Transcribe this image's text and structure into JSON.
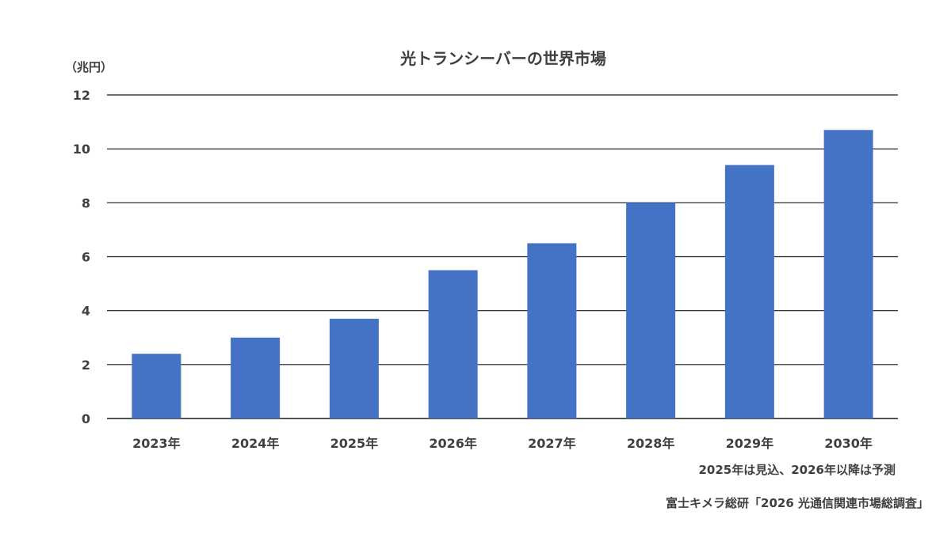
{
  "chart_data": {
    "type": "bar",
    "title": "光トランシーバーの世界市場",
    "unit": "（兆円）",
    "categories": [
      "2023年",
      "2024年",
      "2025年",
      "2026年",
      "2027年",
      "2028年",
      "2029年",
      "2030年"
    ],
    "values": [
      2.4,
      3.0,
      3.7,
      5.5,
      6.5,
      8.0,
      9.4,
      10.7
    ],
    "ylim": [
      0,
      12
    ],
    "yticks": [
      0,
      2,
      4,
      6,
      8,
      10,
      12
    ],
    "grid": true,
    "bar_color": "#4472C4"
  },
  "notes": {
    "forecast": "2025年は見込、2026年以降は予測",
    "source": "富士キメラ総研「2026 光通信関連市場総調査」"
  }
}
